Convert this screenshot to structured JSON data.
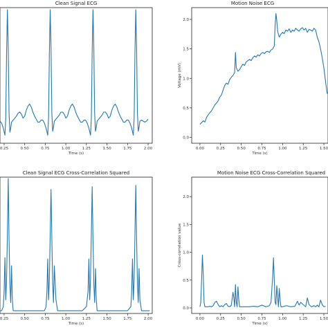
{
  "chart_data": [
    {
      "type": "line",
      "title": "Clean Signal ECG",
      "xlabel": "Time (s)",
      "ylabel": "",
      "xlim": [
        0.2,
        2.05
      ],
      "ylim": [
        -0.35,
        1.0
      ],
      "xticks": [
        0.25,
        0.5,
        0.75,
        1.0,
        1.25,
        1.5,
        1.75,
        2.0
      ],
      "xtick_labels": [
        "0.25",
        "0.50",
        "0.75",
        "1.00",
        "1.25",
        "1.50",
        "1.75",
        "2.00"
      ],
      "yticks": [],
      "ytick_labels": [],
      "series": [
        {
          "color": "#1f77b4",
          "x": [
            0.2,
            0.22,
            0.24,
            0.26,
            0.27,
            0.28,
            0.29,
            0.3,
            0.31,
            0.32,
            0.33,
            0.34,
            0.36,
            0.38,
            0.4,
            0.42,
            0.44,
            0.46,
            0.48,
            0.5,
            0.52,
            0.54,
            0.56,
            0.58,
            0.6,
            0.62,
            0.64,
            0.66,
            0.68,
            0.7,
            0.72,
            0.74,
            0.76,
            0.78,
            0.79,
            0.8,
            0.81,
            0.82,
            0.83,
            0.84,
            0.85,
            0.86,
            0.88,
            0.9,
            0.92,
            0.94,
            0.96,
            0.98,
            1.0,
            1.02,
            1.04,
            1.06,
            1.08,
            1.1,
            1.12,
            1.14,
            1.16,
            1.18,
            1.2,
            1.22,
            1.24,
            1.26,
            1.28,
            1.3,
            1.31,
            1.32,
            1.33,
            1.34,
            1.35,
            1.36,
            1.37,
            1.38,
            1.4,
            1.42,
            1.44,
            1.46,
            1.48,
            1.5,
            1.52,
            1.54,
            1.56,
            1.58,
            1.6,
            1.62,
            1.64,
            1.66,
            1.68,
            1.7,
            1.72,
            1.74,
            1.76,
            1.78,
            1.8,
            1.82,
            1.83,
            1.84,
            1.85,
            1.86,
            1.87,
            1.88,
            1.89,
            1.9,
            1.92,
            1.94,
            1.96,
            1.98,
            2.0
          ],
          "y": [
            -0.13,
            -0.15,
            -0.2,
            -0.27,
            -0.1,
            0.55,
            0.98,
            0.6,
            -0.05,
            -0.24,
            -0.2,
            -0.14,
            -0.12,
            -0.1,
            -0.08,
            -0.05,
            -0.04,
            -0.06,
            -0.1,
            -0.08,
            -0.02,
            0.02,
            0.04,
            0.01,
            -0.04,
            -0.08,
            -0.11,
            -0.14,
            -0.14,
            -0.12,
            -0.12,
            -0.15,
            -0.2,
            -0.27,
            -0.1,
            0.55,
            0.98,
            0.6,
            -0.05,
            -0.23,
            -0.19,
            -0.13,
            -0.11,
            -0.09,
            -0.07,
            -0.04,
            -0.04,
            -0.06,
            -0.1,
            -0.08,
            -0.02,
            0.02,
            0.04,
            0.01,
            -0.04,
            -0.08,
            -0.11,
            -0.14,
            -0.14,
            -0.12,
            -0.12,
            -0.15,
            -0.2,
            -0.27,
            -0.1,
            0.55,
            0.98,
            0.6,
            -0.05,
            -0.23,
            -0.19,
            -0.13,
            -0.11,
            -0.09,
            -0.07,
            -0.04,
            -0.04,
            -0.06,
            -0.1,
            -0.08,
            -0.02,
            0.02,
            0.04,
            0.01,
            -0.04,
            -0.08,
            -0.11,
            -0.14,
            -0.14,
            -0.12,
            -0.12,
            -0.15,
            -0.2,
            -0.27,
            -0.1,
            0.55,
            0.98,
            0.6,
            -0.05,
            -0.23,
            -0.19,
            -0.13,
            -0.12,
            -0.13,
            -0.14,
            -0.13,
            -0.11
          ]
        }
      ]
    },
    {
      "type": "line",
      "title": "Motion Noise ECG",
      "xlabel": "Time (s)",
      "ylabel": "Voltage (mV)",
      "xlim": [
        -0.1,
        1.55
      ],
      "ylim": [
        -0.1,
        2.2
      ],
      "xticks": [
        0.0,
        0.25,
        0.5,
        0.75,
        1.0,
        1.25,
        1.5
      ],
      "xtick_labels": [
        "0.00",
        "0.25",
        "0.50",
        "0.75",
        "1.00",
        "1.25",
        "1.50"
      ],
      "yticks": [
        0.0,
        0.5,
        1.0,
        1.5,
        2.0
      ],
      "ytick_labels": [
        "0.0",
        "0.5",
        "1.0",
        "1.5",
        "2.0"
      ],
      "series": [
        {
          "color": "#1f77b4",
          "x": [
            0.0,
            0.02,
            0.04,
            0.06,
            0.08,
            0.1,
            0.12,
            0.14,
            0.16,
            0.18,
            0.2,
            0.22,
            0.24,
            0.26,
            0.28,
            0.3,
            0.32,
            0.34,
            0.36,
            0.38,
            0.4,
            0.42,
            0.43,
            0.44,
            0.46,
            0.48,
            0.5,
            0.52,
            0.54,
            0.56,
            0.58,
            0.6,
            0.62,
            0.64,
            0.66,
            0.68,
            0.7,
            0.72,
            0.74,
            0.76,
            0.78,
            0.8,
            0.82,
            0.84,
            0.86,
            0.88,
            0.9,
            0.91,
            0.92,
            0.93,
            0.94,
            0.96,
            0.98,
            1.0,
            1.02,
            1.04,
            1.06,
            1.08,
            1.1,
            1.12,
            1.14,
            1.16,
            1.18,
            1.2,
            1.22,
            1.24,
            1.26,
            1.28,
            1.3,
            1.32,
            1.34,
            1.36,
            1.38,
            1.4,
            1.42,
            1.44,
            1.46,
            1.48,
            1.5,
            1.52,
            1.54
          ],
          "y": [
            0.22,
            0.25,
            0.28,
            0.26,
            0.34,
            0.38,
            0.42,
            0.45,
            0.5,
            0.55,
            0.58,
            0.62,
            0.68,
            0.72,
            0.8,
            0.88,
            0.92,
            0.9,
            0.98,
            1.02,
            1.05,
            1.1,
            1.44,
            1.18,
            1.12,
            1.15,
            1.2,
            1.24,
            1.22,
            1.28,
            1.3,
            1.32,
            1.3,
            1.35,
            1.38,
            1.36,
            1.4,
            1.38,
            1.42,
            1.44,
            1.42,
            1.45,
            1.46,
            1.44,
            1.48,
            1.5,
            1.55,
            1.9,
            2.1,
            1.98,
            1.8,
            1.7,
            1.75,
            1.78,
            1.76,
            1.82,
            1.8,
            1.84,
            1.78,
            1.82,
            1.8,
            1.85,
            1.82,
            1.8,
            1.84,
            1.86,
            1.82,
            1.85,
            1.78,
            1.83,
            1.82,
            1.8,
            1.85,
            1.82,
            1.7,
            1.62,
            1.5,
            1.35,
            1.18,
            0.95,
            0.74
          ]
        }
      ]
    },
    {
      "type": "line",
      "title": "Clean Signal ECG Cross-Correlation Squared",
      "xlabel": "Time (s)",
      "ylabel": "",
      "xlim": [
        0.2,
        2.05
      ],
      "ylim": [
        0.0,
        1.0
      ],
      "xticks": [
        0.25,
        0.5,
        0.75,
        1.0,
        1.25,
        1.5,
        1.75,
        2.0
      ],
      "xtick_labels": [
        "0.25",
        "0.50",
        "0.75",
        "1.00",
        "1.25",
        "1.50",
        "1.75",
        "2.00"
      ],
      "yticks": [],
      "ytick_labels": [],
      "series": [
        {
          "color": "#1f77b4",
          "x": [
            0.2,
            0.22,
            0.24,
            0.25,
            0.26,
            0.27,
            0.28,
            0.29,
            0.3,
            0.31,
            0.32,
            0.33,
            0.34,
            0.35,
            0.36,
            0.38,
            0.4,
            0.45,
            0.5,
            0.55,
            0.6,
            0.65,
            0.7,
            0.74,
            0.76,
            0.77,
            0.78,
            0.79,
            0.8,
            0.81,
            0.82,
            0.83,
            0.84,
            0.85,
            0.86,
            0.88,
            0.9,
            0.95,
            1.0,
            1.05,
            1.1,
            1.15,
            1.2,
            1.25,
            1.27,
            1.28,
            1.29,
            1.3,
            1.31,
            1.32,
            1.33,
            1.34,
            1.35,
            1.36,
            1.37,
            1.38,
            1.4,
            1.45,
            1.5,
            1.55,
            1.6,
            1.65,
            1.7,
            1.75,
            1.79,
            1.8,
            1.81,
            1.82,
            1.83,
            1.84,
            1.85,
            1.86,
            1.87,
            1.88,
            1.89,
            1.9,
            1.92,
            1.94,
            1.96,
            1.98,
            2.0,
            2.02
          ],
          "y": [
            0.02,
            0.02,
            0.05,
            0.16,
            0.41,
            0.1,
            0.25,
            0.58,
            0.99,
            0.55,
            0.22,
            0.08,
            0.35,
            0.1,
            0.02,
            0.02,
            0.02,
            0.02,
            0.02,
            0.02,
            0.02,
            0.02,
            0.02,
            0.02,
            0.05,
            0.16,
            0.4,
            0.1,
            0.25,
            0.58,
            0.91,
            0.55,
            0.22,
            0.08,
            0.35,
            0.1,
            0.02,
            0.02,
            0.02,
            0.02,
            0.02,
            0.02,
            0.02,
            0.05,
            0.16,
            0.4,
            0.1,
            0.25,
            0.58,
            0.93,
            0.55,
            0.22,
            0.08,
            0.33,
            0.1,
            0.02,
            0.02,
            0.02,
            0.02,
            0.02,
            0.02,
            0.02,
            0.02,
            0.02,
            0.05,
            0.16,
            0.4,
            0.1,
            0.25,
            0.58,
            0.94,
            0.55,
            0.22,
            0.08,
            0.33,
            0.1,
            0.02,
            0.02,
            0.02,
            0.02,
            0.02,
            0.02
          ]
        }
      ]
    },
    {
      "type": "line",
      "title": "Motion Noise ECG Cross-Correlation Squared",
      "xlabel": "Time (s)",
      "ylabel": "Cross-correlation value",
      "xlim": [
        -0.1,
        1.55
      ],
      "ylim": [
        -0.1,
        2.35
      ],
      "xticks": [
        0.0,
        0.25,
        0.5,
        0.75,
        1.0,
        1.25,
        1.5
      ],
      "xtick_labels": [
        "0.00",
        "0.25",
        "0.50",
        "0.75",
        "1.00",
        "1.25",
        "1.50"
      ],
      "yticks": [
        0.0,
        0.5,
        1.0,
        1.5,
        2.0
      ],
      "ytick_labels": [
        "0.0",
        "0.5",
        "1.0",
        "1.5",
        "2.0"
      ],
      "series": [
        {
          "color": "#1f77b4",
          "x": [
            0.0,
            0.01,
            0.02,
            0.03,
            0.04,
            0.05,
            0.06,
            0.08,
            0.1,
            0.12,
            0.14,
            0.16,
            0.18,
            0.2,
            0.22,
            0.24,
            0.26,
            0.28,
            0.3,
            0.32,
            0.34,
            0.36,
            0.38,
            0.4,
            0.41,
            0.42,
            0.43,
            0.44,
            0.45,
            0.46,
            0.47,
            0.48,
            0.5,
            0.55,
            0.6,
            0.65,
            0.7,
            0.75,
            0.8,
            0.84,
            0.86,
            0.88,
            0.89,
            0.9,
            0.91,
            0.92,
            0.93,
            0.94,
            0.95,
            0.96,
            0.97,
            0.98,
            1.0,
            1.02,
            1.05,
            1.1,
            1.15,
            1.18,
            1.2,
            1.22,
            1.25,
            1.28,
            1.3,
            1.32,
            1.35,
            1.38,
            1.4,
            1.42,
            1.44,
            1.46,
            1.48,
            1.5,
            1.52
          ],
          "y": [
            0.02,
            0.1,
            0.5,
            0.95,
            0.6,
            0.1,
            0.02,
            0.02,
            0.02,
            0.03,
            0.02,
            0.04,
            0.1,
            0.12,
            0.06,
            0.02,
            0.04,
            0.02,
            0.06,
            0.08,
            0.03,
            0.02,
            0.05,
            0.28,
            0.18,
            0.02,
            0.42,
            0.1,
            0.02,
            0.38,
            0.15,
            0.02,
            0.02,
            0.02,
            0.02,
            0.03,
            0.02,
            0.05,
            0.02,
            0.04,
            0.1,
            0.55,
            0.9,
            0.5,
            0.1,
            0.06,
            0.4,
            0.2,
            0.02,
            0.35,
            0.15,
            0.02,
            0.02,
            0.03,
            0.04,
            0.02,
            0.03,
            0.12,
            0.05,
            0.1,
            0.06,
            0.02,
            0.18,
            0.06,
            0.02,
            0.04,
            0.02,
            0.05,
            0.02,
            0.14,
            0.06,
            0.02,
            0.03
          ]
        }
      ]
    }
  ]
}
